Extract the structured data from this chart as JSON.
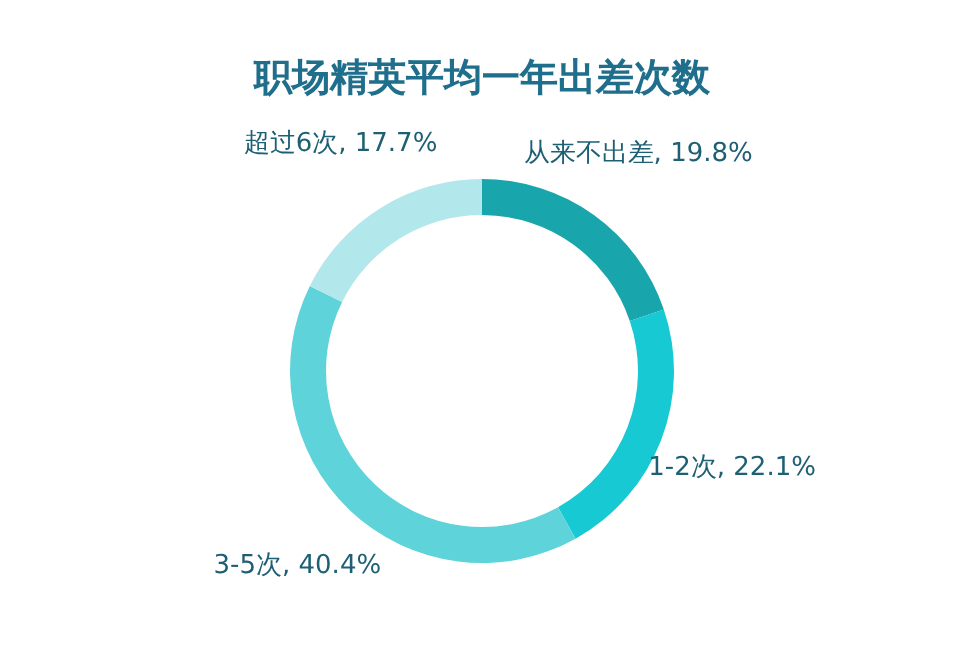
{
  "chart_data": {
    "type": "donut",
    "title": "职场精英平均一年出差次数",
    "categories": [
      "从来不出差",
      "1-2次",
      "3-5次",
      "超过6次"
    ],
    "values": [
      19.8,
      22.1,
      40.4,
      17.7
    ],
    "colors": [
      "#18a5ab",
      "#17c9d3",
      "#5ed3da",
      "#b2e7eb"
    ],
    "value_labels": [
      "19.8%",
      "22.1%",
      "40.4%",
      "17.7%"
    ],
    "legend": false
  }
}
